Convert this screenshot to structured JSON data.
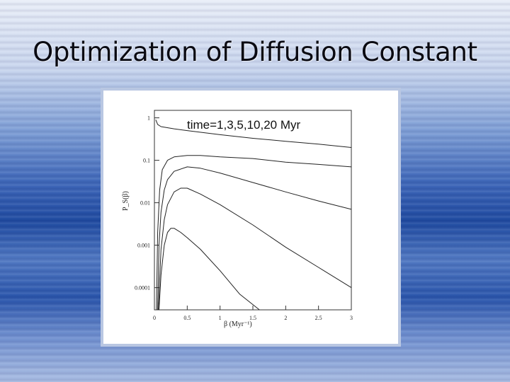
{
  "slide": {
    "title": "Optimization of Diffusion Constant"
  },
  "chart_data": {
    "type": "line",
    "annotation": "time=1,3,5,10,20 Myr",
    "xlabel": "β (Myr⁻¹)",
    "ylabel": "P_S(β)",
    "xlim": [
      0,
      3
    ],
    "ylim": [
      3e-05,
      1.5
    ],
    "yscale": "log",
    "x_ticks": [
      0,
      0.5,
      1,
      1.5,
      2,
      2.5,
      3
    ],
    "x_tick_labels": [
      "0",
      "0.5",
      "1",
      "1.5",
      "2",
      "2.5",
      "3"
    ],
    "y_ticks": [
      1,
      0.1,
      0.01,
      0.001,
      0.0001
    ],
    "y_tick_labels": [
      "1",
      "0.1",
      "0.01",
      "0.001",
      "0.0001"
    ],
    "grid": false,
    "series": [
      {
        "x": [
          0.02,
          0.05,
          0.1,
          0.3,
          0.5,
          1.0,
          1.5,
          2.0,
          2.5,
          3.0
        ],
        "y": [
          0.9,
          0.7,
          0.62,
          0.55,
          0.5,
          0.4,
          0.33,
          0.28,
          0.24,
          0.2
        ]
      },
      {
        "x": [
          0.03,
          0.05,
          0.08,
          0.12,
          0.2,
          0.3,
          0.5,
          0.7,
          1.0,
          1.5,
          2.0,
          2.5,
          3.0
        ],
        "y": [
          2e-05,
          0.002,
          0.02,
          0.06,
          0.1,
          0.12,
          0.13,
          0.13,
          0.12,
          0.11,
          0.09,
          0.08,
          0.07
        ]
      },
      {
        "x": [
          0.05,
          0.07,
          0.1,
          0.15,
          0.2,
          0.3,
          0.5,
          0.7,
          1.0,
          1.5,
          2.0,
          2.5,
          3.0
        ],
        "y": [
          2e-05,
          0.001,
          0.006,
          0.02,
          0.035,
          0.055,
          0.07,
          0.065,
          0.05,
          0.03,
          0.018,
          0.011,
          0.007
        ]
      },
      {
        "x": [
          0.06,
          0.1,
          0.15,
          0.2,
          0.3,
          0.4,
          0.5,
          0.7,
          1.0,
          1.5,
          2.0,
          2.5,
          3.0
        ],
        "y": [
          2e-05,
          0.0008,
          0.004,
          0.009,
          0.018,
          0.022,
          0.022,
          0.016,
          0.009,
          0.003,
          0.0009,
          0.0003,
          0.0001
        ]
      },
      {
        "x": [
          0.07,
          0.1,
          0.15,
          0.2,
          0.25,
          0.3,
          0.4,
          0.5,
          0.7,
          1.0,
          1.3,
          1.6
        ],
        "y": [
          2e-05,
          0.0002,
          0.001,
          0.002,
          0.0025,
          0.0025,
          0.002,
          0.0015,
          0.0008,
          0.00025,
          7e-05,
          2e-05
        ]
      }
    ]
  }
}
